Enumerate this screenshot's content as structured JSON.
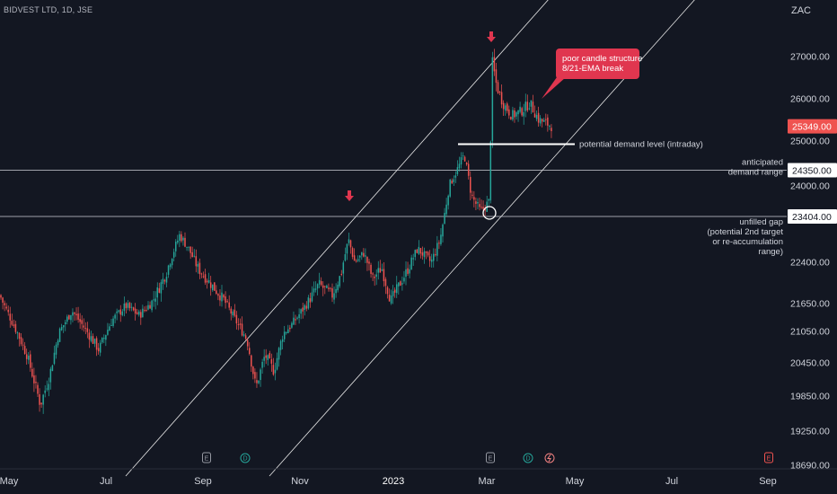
{
  "header": {
    "symbol_label": "BIDVEST LTD, 1D, JSE",
    "currency": "ZAC"
  },
  "colors": {
    "background": "#131722",
    "up": "#26a69a",
    "down": "#ef5350",
    "axis_text": "#d1d4dc",
    "line": "#e8e8e8",
    "callout": "#e0364f"
  },
  "chart_data": {
    "type": "candlestick",
    "y_axis": {
      "ticks": [
        27000,
        26000,
        25000,
        24000,
        22400,
        21650,
        21050,
        20450,
        19850,
        19250,
        18690
      ],
      "tick_labels": [
        "27000.00",
        "26000.00",
        "25000.00",
        "24000.00",
        "22400.00",
        "21650.00",
        "21050.00",
        "20450.00",
        "19850.00",
        "19250.00",
        "18690.00"
      ]
    },
    "x_axis": {
      "labels": [
        "May",
        "Jul",
        "Sep",
        "Nov",
        "2023",
        "Mar",
        "May",
        "Jul",
        "Sep"
      ],
      "label_positions": [
        10,
        118,
        226,
        334,
        438,
        542,
        640,
        748,
        855
      ]
    },
    "price_labels": [
      {
        "value": 25349,
        "text": "25349.00",
        "style": "last-price"
      },
      {
        "value": 24350,
        "text": "24350.00",
        "style": "level"
      },
      {
        "value": 23404,
        "text": "23404.00",
        "style": "level"
      }
    ],
    "horizontal_levels": [
      {
        "value": 24350,
        "label": "anticipated\ndemand range"
      },
      {
        "value": 23404,
        "label": "unfilled gap\n(potential 2nd target\nor re-accumulation\nrange)"
      }
    ],
    "demand_line": {
      "value": 24930,
      "label": "potential demand level (intraday)"
    },
    "callout_text": "poor candle structure\n8/21-EMA break",
    "event_badges": [
      {
        "x": 230,
        "kind": "E"
      },
      {
        "x": 273,
        "kind": "D"
      },
      {
        "x": 546,
        "kind": "E"
      },
      {
        "x": 588,
        "kind": "D"
      },
      {
        "x": 612,
        "kind": "S"
      },
      {
        "x": 856,
        "kind": "E"
      }
    ],
    "close_path": [
      [
        0,
        21800
      ],
      [
        10,
        21400
      ],
      [
        20,
        21000
      ],
      [
        30,
        20600
      ],
      [
        45,
        19700
      ],
      [
        55,
        20200
      ],
      [
        65,
        21000
      ],
      [
        80,
        21500
      ],
      [
        95,
        21100
      ],
      [
        110,
        20700
      ],
      [
        125,
        21300
      ],
      [
        140,
        21600
      ],
      [
        155,
        21400
      ],
      [
        170,
        21700
      ],
      [
        185,
        22200
      ],
      [
        200,
        23000
      ],
      [
        210,
        22700
      ],
      [
        220,
        22300
      ],
      [
        235,
        22000
      ],
      [
        250,
        21700
      ],
      [
        265,
        21200
      ],
      [
        275,
        20900
      ],
      [
        285,
        20000
      ],
      [
        295,
        20600
      ],
      [
        305,
        20300
      ],
      [
        315,
        21000
      ],
      [
        325,
        21200
      ],
      [
        340,
        21600
      ],
      [
        355,
        22000
      ],
      [
        370,
        21800
      ],
      [
        380,
        22200
      ],
      [
        388,
        22900
      ],
      [
        395,
        22400
      ],
      [
        405,
        22600
      ],
      [
        415,
        22100
      ],
      [
        425,
        22300
      ],
      [
        435,
        21700
      ],
      [
        445,
        22000
      ],
      [
        455,
        22300
      ],
      [
        465,
        22700
      ],
      [
        480,
        22400
      ],
      [
        490,
        22900
      ],
      [
        500,
        24000
      ],
      [
        510,
        24400
      ],
      [
        517,
        24700
      ],
      [
        525,
        23800
      ],
      [
        535,
        23500
      ],
      [
        545,
        23700
      ],
      [
        548,
        26900
      ],
      [
        553,
        26300
      ],
      [
        560,
        25900
      ],
      [
        570,
        25600
      ],
      [
        580,
        25700
      ],
      [
        590,
        25900
      ],
      [
        600,
        25500
      ],
      [
        615,
        25350
      ]
    ]
  }
}
